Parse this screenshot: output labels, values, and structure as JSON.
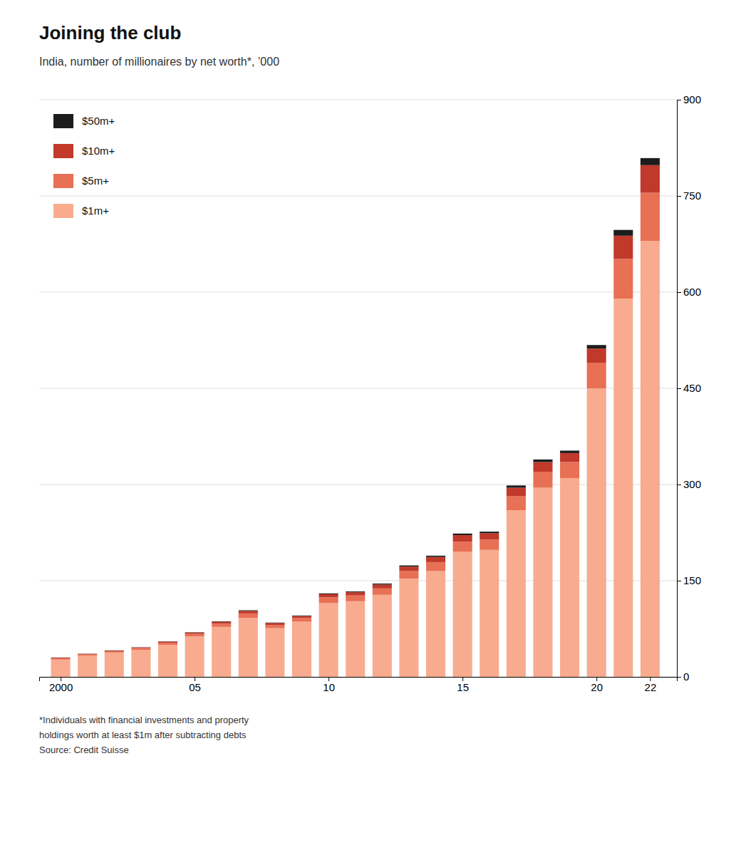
{
  "chart_data": {
    "type": "bar",
    "stacked": true,
    "title": "Joining the club",
    "subtitle": "India, number of millionaires by net worth*, ’000",
    "footnote": "*Individuals with financial investments and property\nholdings worth at least $1m after subtracting debts\nSource: Credit Suisse",
    "x": [
      2000,
      2001,
      2002,
      2003,
      2004,
      2005,
      2006,
      2007,
      2008,
      2009,
      2010,
      2011,
      2012,
      2013,
      2014,
      2015,
      2016,
      2017,
      2018,
      2019,
      2020,
      2021,
      2022
    ],
    "series": [
      {
        "name": "$1m+",
        "color": "#f8ab8f",
        "values": [
          27,
          33,
          38,
          42,
          50,
          63,
          78,
          92,
          76,
          86,
          115,
          118,
          128,
          153,
          165,
          195,
          198,
          260,
          295,
          310,
          450,
          590,
          680
        ]
      },
      {
        "name": "$5m+",
        "color": "#e87055",
        "values": [
          2,
          2,
          2,
          3,
          3,
          4,
          5,
          7,
          5,
          6,
          9,
          9,
          10,
          12,
          14,
          16,
          16,
          22,
          25,
          25,
          40,
          62,
          75
        ]
      },
      {
        "name": "$10m+",
        "color": "#c0392b",
        "values": [
          1,
          1,
          1,
          1,
          2,
          2,
          3,
          4,
          3,
          3,
          5,
          5,
          6,
          7,
          8,
          10,
          10,
          13,
          15,
          14,
          22,
          36,
          43
        ]
      },
      {
        "name": "$50m+",
        "color": "#1c1c1c",
        "values": [
          0.2,
          0.2,
          0.3,
          0.3,
          0.4,
          0.5,
          0.7,
          0.9,
          0.7,
          0.8,
          1.2,
          1.2,
          1.5,
          1.8,
          2,
          2.5,
          2.5,
          3.5,
          4,
          3.8,
          5.5,
          9,
          11
        ]
      }
    ],
    "xlim": [
      1999.2,
      2023.0
    ],
    "xticks": [
      2000,
      {
        "value": 2005,
        "label": "05"
      },
      {
        "value": 2010,
        "label": "10"
      },
      {
        "value": 2015,
        "label": "15"
      },
      {
        "value": 2020,
        "label": "20"
      },
      {
        "value": 2022,
        "label": "22"
      }
    ],
    "ylim": [
      0,
      900
    ],
    "yticks": [
      0,
      150,
      300,
      450,
      600,
      750,
      900
    ],
    "grid": true,
    "legend": "upper left"
  }
}
